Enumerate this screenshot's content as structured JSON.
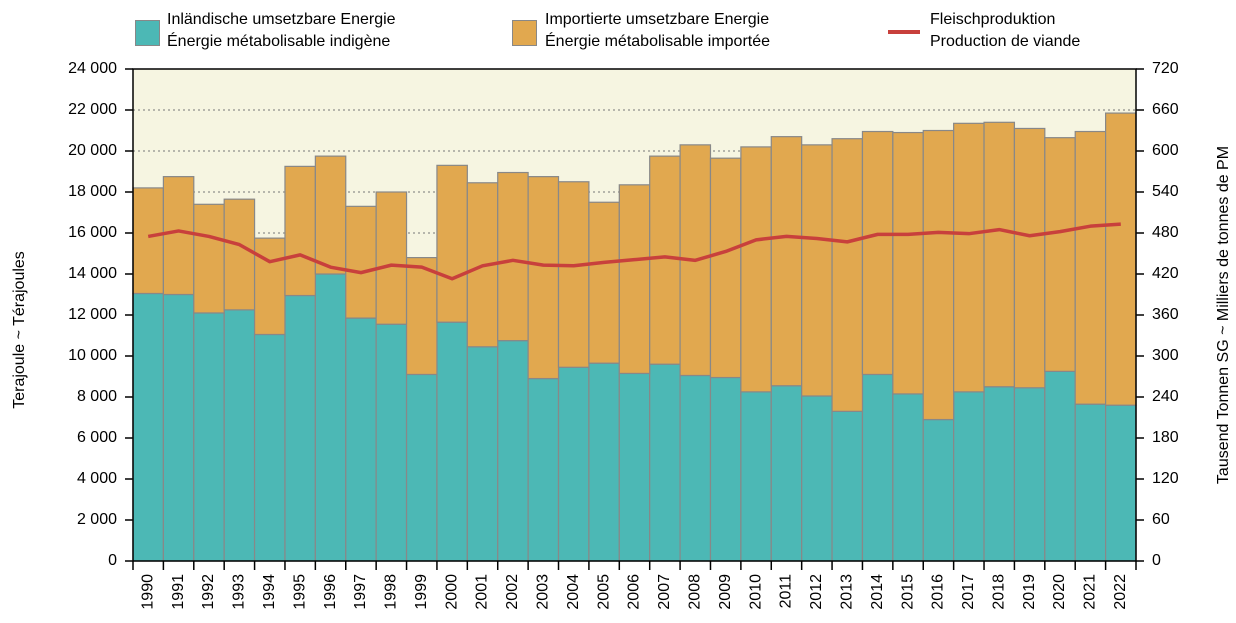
{
  "chart_data": {
    "type": "bar",
    "stacked": true,
    "ylabel": "Terajoule   ~   Térajoules",
    "y2label": "Tausend Tonnen SG   ~   Milliers de tonnes de PM",
    "categories": [
      "1990",
      "1991",
      "1992",
      "1993",
      "1994",
      "1995",
      "1996",
      "1997",
      "1998",
      "1999",
      "2000",
      "2001",
      "2002",
      "2003",
      "2004",
      "2005",
      "2006",
      "2007",
      "2008",
      "2009",
      "2010",
      "2011",
      "2012",
      "2013",
      "2014",
      "2015",
      "2016",
      "2017",
      "2018",
      "2019",
      "2020",
      "2021",
      "2022"
    ],
    "series": [
      {
        "name": "Inländische umsetzbare Energie\nÉnergie métabolisable indigène",
        "type": "bar",
        "color": "#4cb8b5",
        "values": [
          13050,
          13000,
          12100,
          12250,
          11050,
          12950,
          14000,
          11850,
          11550,
          9100,
          11650,
          10450,
          10750,
          8900,
          9450,
          9650,
          9150,
          9600,
          9050,
          8950,
          8250,
          8550,
          8050,
          7300,
          9100,
          8150,
          6900,
          8250,
          8500,
          8450,
          9250,
          7650,
          7600
        ]
      },
      {
        "name": "Importierte umsetzbare Energie\nÉnergie métabolisable importée",
        "type": "bar",
        "color": "#e1a84f",
        "values": [
          5150,
          5750,
          5300,
          5400,
          4700,
          6300,
          5750,
          5450,
          6450,
          5700,
          7650,
          8000,
          8200,
          9850,
          9050,
          7850,
          9200,
          10150,
          11250,
          10700,
          11950,
          12150,
          12250,
          13300,
          11850,
          12750,
          14100,
          13100,
          12900,
          12650,
          11400,
          13300,
          14250
        ]
      },
      {
        "name": "Fleischproduktion\nProduction de viande",
        "type": "line",
        "axis": "y2",
        "color": "#c8403c",
        "values": [
          475,
          483,
          475,
          463,
          438,
          448,
          430,
          422,
          433,
          430,
          413,
          432,
          440,
          433,
          432,
          437,
          441,
          445,
          440,
          453,
          470,
          475,
          472,
          467,
          478,
          478,
          481,
          479,
          485,
          476,
          482,
          490,
          493
        ]
      }
    ],
    "ylim": [
      0,
      24000
    ],
    "yticks": [
      0,
      {
        "value": 2000,
        "label": "2 000"
      },
      {
        "value": 4000,
        "label": "4 000"
      },
      {
        "value": 6000,
        "label": "6 000"
      },
      {
        "value": 8000,
        "label": "8 000"
      },
      {
        "value": 10000,
        "label": "10 000"
      },
      {
        "value": 12000,
        "label": "12 000"
      },
      {
        "value": 14000,
        "label": "14 000"
      },
      {
        "value": 16000,
        "label": "16 000"
      },
      {
        "value": 18000,
        "label": "18 000"
      },
      {
        "value": 20000,
        "label": "20 000"
      },
      {
        "value": 22000,
        "label": "22 000"
      },
      {
        "value": 24000,
        "label": "24 000"
      }
    ],
    "y2lim": [
      0,
      720
    ],
    "y2ticks": [
      0,
      60,
      120,
      180,
      240,
      300,
      360,
      420,
      480,
      540,
      600,
      660,
      720
    ],
    "grid": true,
    "background": "#f6f5e1"
  }
}
